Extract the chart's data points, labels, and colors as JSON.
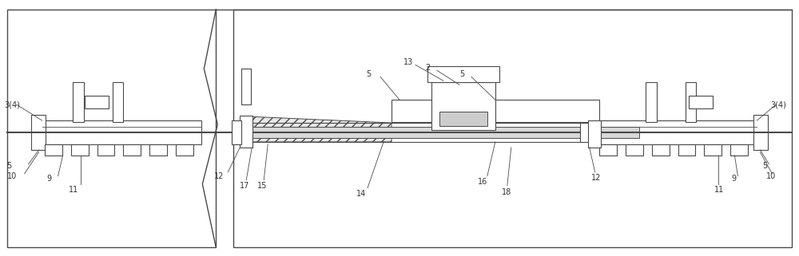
{
  "bg_color": "#ffffff",
  "lc": "#4a4a4a",
  "lw": 0.8,
  "fig_w": 10.0,
  "fig_h": 3.21,
  "dpi": 100,
  "xlim": [
    0,
    1000
  ],
  "ylim": [
    0,
    321
  ],
  "fs": 7.0
}
